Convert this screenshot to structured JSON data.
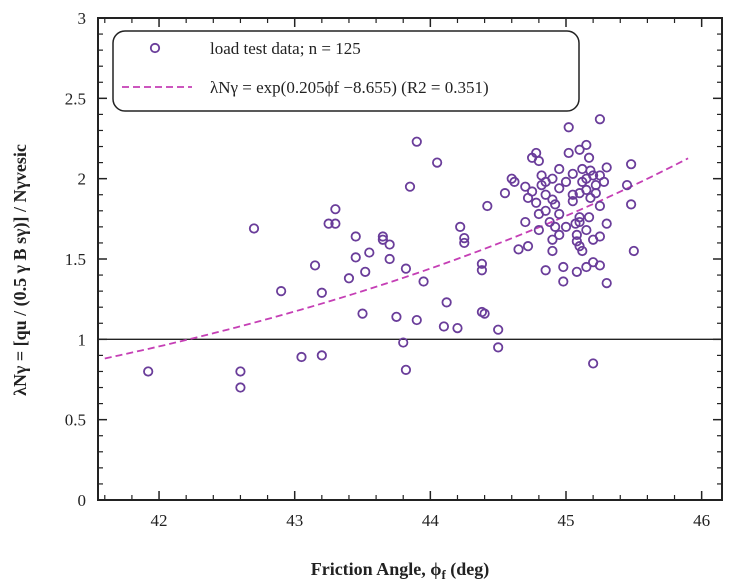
{
  "chart_data": {
    "type": "scatter",
    "title": "",
    "xlabel": "Friction Angle, ϕ",
    "xlabel_sub": "f",
    "xlabel_unit": " (deg)",
    "ylabel": "λNγ = [qu / (0.5 γ B sγ)] / Nγvesic",
    "xlim": [
      41.55,
      46.15
    ],
    "ylim": [
      0,
      3
    ],
    "xticks": [
      42,
      43,
      44,
      45,
      46
    ],
    "yticks": [
      0,
      0.5,
      1,
      1.5,
      2,
      2.5,
      3
    ],
    "xtick_labels": [
      "42",
      "43",
      "44",
      "45",
      "46"
    ],
    "ytick_labels": [
      "0",
      "0.5",
      "1",
      "1.5",
      "2",
      "2.5",
      "3"
    ],
    "reference_line_y": 1,
    "legend": {
      "position": "top-left",
      "entries": [
        {
          "name": "load test data; n = 125",
          "marker": "circle"
        },
        {
          "name": "λNγ = exp(0.205ϕf −8.655) (R2 = 0.351)",
          "marker": "dashed-line"
        }
      ]
    },
    "fit": {
      "a": 0.205,
      "b": -8.655,
      "x_range": [
        41.6,
        45.9
      ],
      "r2": 0.351
    },
    "colors": {
      "points": "#6a3d9a",
      "fit": "#c53fb5",
      "axis": "#222222"
    },
    "series": [
      {
        "name": "load test data",
        "points": [
          [
            41.92,
            0.8
          ],
          [
            42.6,
            0.7
          ],
          [
            42.6,
            0.8
          ],
          [
            42.7,
            1.69
          ],
          [
            42.9,
            1.3
          ],
          [
            43.05,
            0.89
          ],
          [
            43.15,
            1.46
          ],
          [
            43.2,
            1.29
          ],
          [
            43.2,
            0.9
          ],
          [
            43.25,
            1.72
          ],
          [
            43.3,
            1.81
          ],
          [
            43.3,
            1.72
          ],
          [
            43.4,
            1.38
          ],
          [
            43.45,
            1.64
          ],
          [
            43.45,
            1.51
          ],
          [
            43.5,
            1.16
          ],
          [
            43.52,
            1.42
          ],
          [
            43.55,
            1.54
          ],
          [
            43.65,
            1.64
          ],
          [
            43.65,
            1.62
          ],
          [
            43.7,
            1.59
          ],
          [
            43.7,
            1.5
          ],
          [
            43.75,
            1.14
          ],
          [
            43.8,
            0.98
          ],
          [
            43.82,
            1.44
          ],
          [
            43.82,
            0.81
          ],
          [
            43.85,
            1.95
          ],
          [
            43.9,
            2.23
          ],
          [
            43.9,
            1.12
          ],
          [
            43.95,
            1.36
          ],
          [
            44.05,
            2.1
          ],
          [
            44.1,
            1.08
          ],
          [
            44.12,
            1.23
          ],
          [
            44.2,
            1.07
          ],
          [
            44.22,
            1.7
          ],
          [
            44.25,
            1.6
          ],
          [
            44.25,
            1.63
          ],
          [
            44.38,
            1.47
          ],
          [
            44.38,
            1.43
          ],
          [
            44.38,
            1.17
          ],
          [
            44.4,
            1.16
          ],
          [
            44.42,
            1.83
          ],
          [
            44.5,
            1.06
          ],
          [
            44.5,
            0.95
          ],
          [
            44.55,
            1.91
          ],
          [
            44.6,
            2.0
          ],
          [
            44.62,
            1.98
          ],
          [
            44.65,
            1.56
          ],
          [
            44.7,
            1.95
          ],
          [
            44.72,
            1.88
          ],
          [
            44.72,
            1.58
          ],
          [
            44.75,
            2.13
          ],
          [
            44.75,
            1.92
          ],
          [
            44.78,
            2.16
          ],
          [
            44.78,
            1.85
          ],
          [
            44.8,
            2.11
          ],
          [
            44.8,
            1.68
          ],
          [
            44.82,
            2.02
          ],
          [
            44.82,
            1.96
          ],
          [
            44.85,
            1.9
          ],
          [
            44.85,
            1.8
          ],
          [
            44.85,
            1.43
          ],
          [
            44.88,
            1.73
          ],
          [
            44.9,
            2.0
          ],
          [
            44.9,
            1.87
          ],
          [
            44.9,
            1.55
          ],
          [
            44.92,
            1.84
          ],
          [
            44.92,
            1.7
          ],
          [
            44.95,
            2.06
          ],
          [
            44.95,
            1.94
          ],
          [
            44.95,
            1.78
          ],
          [
            44.95,
            1.65
          ],
          [
            44.98,
            1.45
          ],
          [
            44.98,
            1.36
          ],
          [
            45.0,
            1.98
          ],
          [
            45.02,
            2.32
          ],
          [
            45.02,
            2.16
          ],
          [
            45.05,
            1.9
          ],
          [
            45.05,
            1.86
          ],
          [
            45.07,
            1.72
          ],
          [
            45.08,
            1.65
          ],
          [
            45.08,
            1.61
          ],
          [
            45.08,
            1.42
          ],
          [
            45.1,
            2.18
          ],
          [
            45.1,
            1.91
          ],
          [
            45.1,
            1.76
          ],
          [
            45.1,
            1.73
          ],
          [
            45.12,
            2.06
          ],
          [
            45.12,
            1.98
          ],
          [
            45.12,
            1.55
          ],
          [
            45.15,
            2.21
          ],
          [
            45.15,
            2.0
          ],
          [
            45.15,
            1.93
          ],
          [
            45.15,
            1.45
          ],
          [
            45.17,
            2.13
          ],
          [
            45.17,
            1.76
          ],
          [
            45.18,
            2.05
          ],
          [
            45.18,
            1.88
          ],
          [
            45.2,
            2.02
          ],
          [
            45.2,
            1.62
          ],
          [
            45.2,
            1.48
          ],
          [
            45.2,
            0.85
          ],
          [
            45.22,
            1.96
          ],
          [
            45.22,
            1.91
          ],
          [
            45.25,
            2.37
          ],
          [
            45.25,
            2.02
          ],
          [
            45.25,
            1.83
          ],
          [
            45.25,
            1.64
          ],
          [
            45.25,
            1.46
          ],
          [
            45.28,
            1.98
          ],
          [
            45.3,
            2.07
          ],
          [
            45.3,
            1.35
          ],
          [
            45.45,
            1.96
          ],
          [
            45.48,
            2.09
          ],
          [
            45.48,
            1.84
          ],
          [
            45.5,
            1.55
          ],
          [
            45.05,
            2.03
          ],
          [
            44.85,
            1.98
          ],
          [
            45.0,
            1.7
          ],
          [
            44.8,
            1.78
          ],
          [
            45.3,
            1.72
          ],
          [
            44.7,
            1.73
          ],
          [
            45.1,
            1.58
          ],
          [
            44.9,
            1.62
          ],
          [
            45.15,
            1.68
          ]
        ]
      }
    ]
  }
}
